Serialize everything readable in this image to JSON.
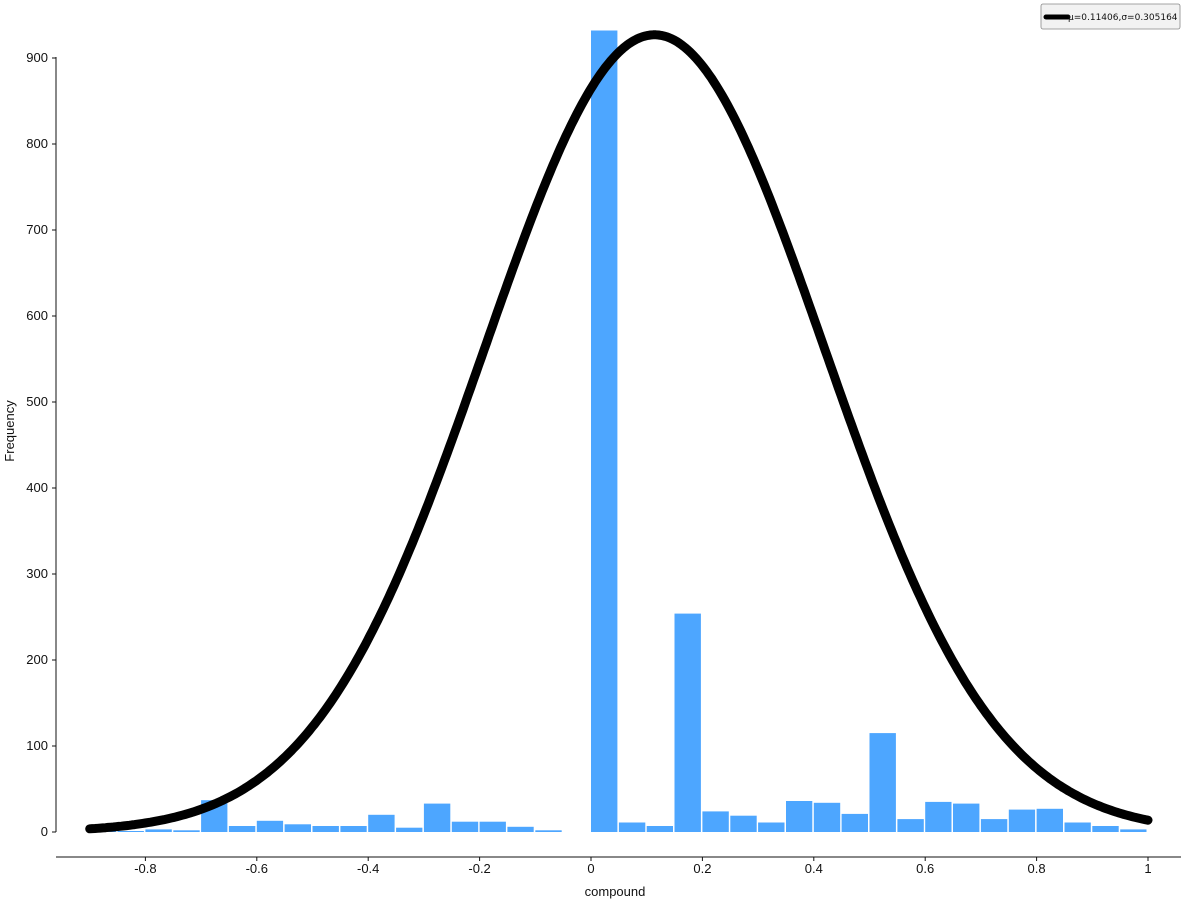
{
  "chart_data": {
    "type": "bar",
    "title": "",
    "xlabel": "compound",
    "ylabel": "Frequency",
    "xlim": [
      -0.9,
      1.0
    ],
    "ylim": [
      0,
      930
    ],
    "x_ticks": [
      "-0.8",
      "-0.6",
      "-0.4",
      "-0.2",
      "0",
      "0.2",
      "0.4",
      "0.6",
      "0.8",
      "1"
    ],
    "y_ticks": [
      "0",
      "100",
      "200",
      "300",
      "400",
      "500",
      "600",
      "700",
      "800",
      "900"
    ],
    "bar_color": "#4da6ff",
    "curve_color": "#000000",
    "bins": [
      {
        "x0": -0.9,
        "x1": -0.85,
        "count": 1
      },
      {
        "x0": -0.85,
        "x1": -0.8,
        "count": 1
      },
      {
        "x0": -0.8,
        "x1": -0.75,
        "count": 3
      },
      {
        "x0": -0.75,
        "x1": -0.7,
        "count": 2
      },
      {
        "x0": -0.7,
        "x1": -0.65,
        "count": 37
      },
      {
        "x0": -0.65,
        "x1": -0.6,
        "count": 7
      },
      {
        "x0": -0.6,
        "x1": -0.55,
        "count": 13
      },
      {
        "x0": -0.55,
        "x1": -0.5,
        "count": 9
      },
      {
        "x0": -0.5,
        "x1": -0.45,
        "count": 7
      },
      {
        "x0": -0.45,
        "x1": -0.4,
        "count": 7
      },
      {
        "x0": -0.4,
        "x1": -0.35,
        "count": 20
      },
      {
        "x0": -0.35,
        "x1": -0.3,
        "count": 5
      },
      {
        "x0": -0.3,
        "x1": -0.25,
        "count": 33
      },
      {
        "x0": -0.25,
        "x1": -0.2,
        "count": 12
      },
      {
        "x0": -0.2,
        "x1": -0.15,
        "count": 12
      },
      {
        "x0": -0.15,
        "x1": -0.1,
        "count": 6
      },
      {
        "x0": -0.1,
        "x1": -0.05,
        "count": 2
      },
      {
        "x0": 0.0,
        "x1": 0.05,
        "count": 932
      },
      {
        "x0": 0.05,
        "x1": 0.1,
        "count": 11
      },
      {
        "x0": 0.1,
        "x1": 0.15,
        "count": 7
      },
      {
        "x0": 0.15,
        "x1": 0.2,
        "count": 254
      },
      {
        "x0": 0.2,
        "x1": 0.25,
        "count": 24
      },
      {
        "x0": 0.25,
        "x1": 0.3,
        "count": 19
      },
      {
        "x0": 0.3,
        "x1": 0.35,
        "count": 11
      },
      {
        "x0": 0.35,
        "x1": 0.4,
        "count": 36
      },
      {
        "x0": 0.4,
        "x1": 0.45,
        "count": 34
      },
      {
        "x0": 0.45,
        "x1": 0.5,
        "count": 21
      },
      {
        "x0": 0.5,
        "x1": 0.55,
        "count": 115
      },
      {
        "x0": 0.55,
        "x1": 0.6,
        "count": 15
      },
      {
        "x0": 0.6,
        "x1": 0.65,
        "count": 35
      },
      {
        "x0": 0.65,
        "x1": 0.7,
        "count": 33
      },
      {
        "x0": 0.7,
        "x1": 0.75,
        "count": 15
      },
      {
        "x0": 0.75,
        "x1": 0.8,
        "count": 26
      },
      {
        "x0": 0.8,
        "x1": 0.85,
        "count": 27
      },
      {
        "x0": 0.85,
        "x1": 0.9,
        "count": 11
      },
      {
        "x0": 0.9,
        "x1": 0.95,
        "count": 7
      },
      {
        "x0": 0.95,
        "x1": 1.0,
        "count": 3
      }
    ],
    "normal_fit": {
      "mu": 0.11406,
      "sigma": 0.305164,
      "peak": 927
    },
    "legend": {
      "position": "top-right",
      "label": "μ=0.11406,σ=0.305164"
    }
  }
}
